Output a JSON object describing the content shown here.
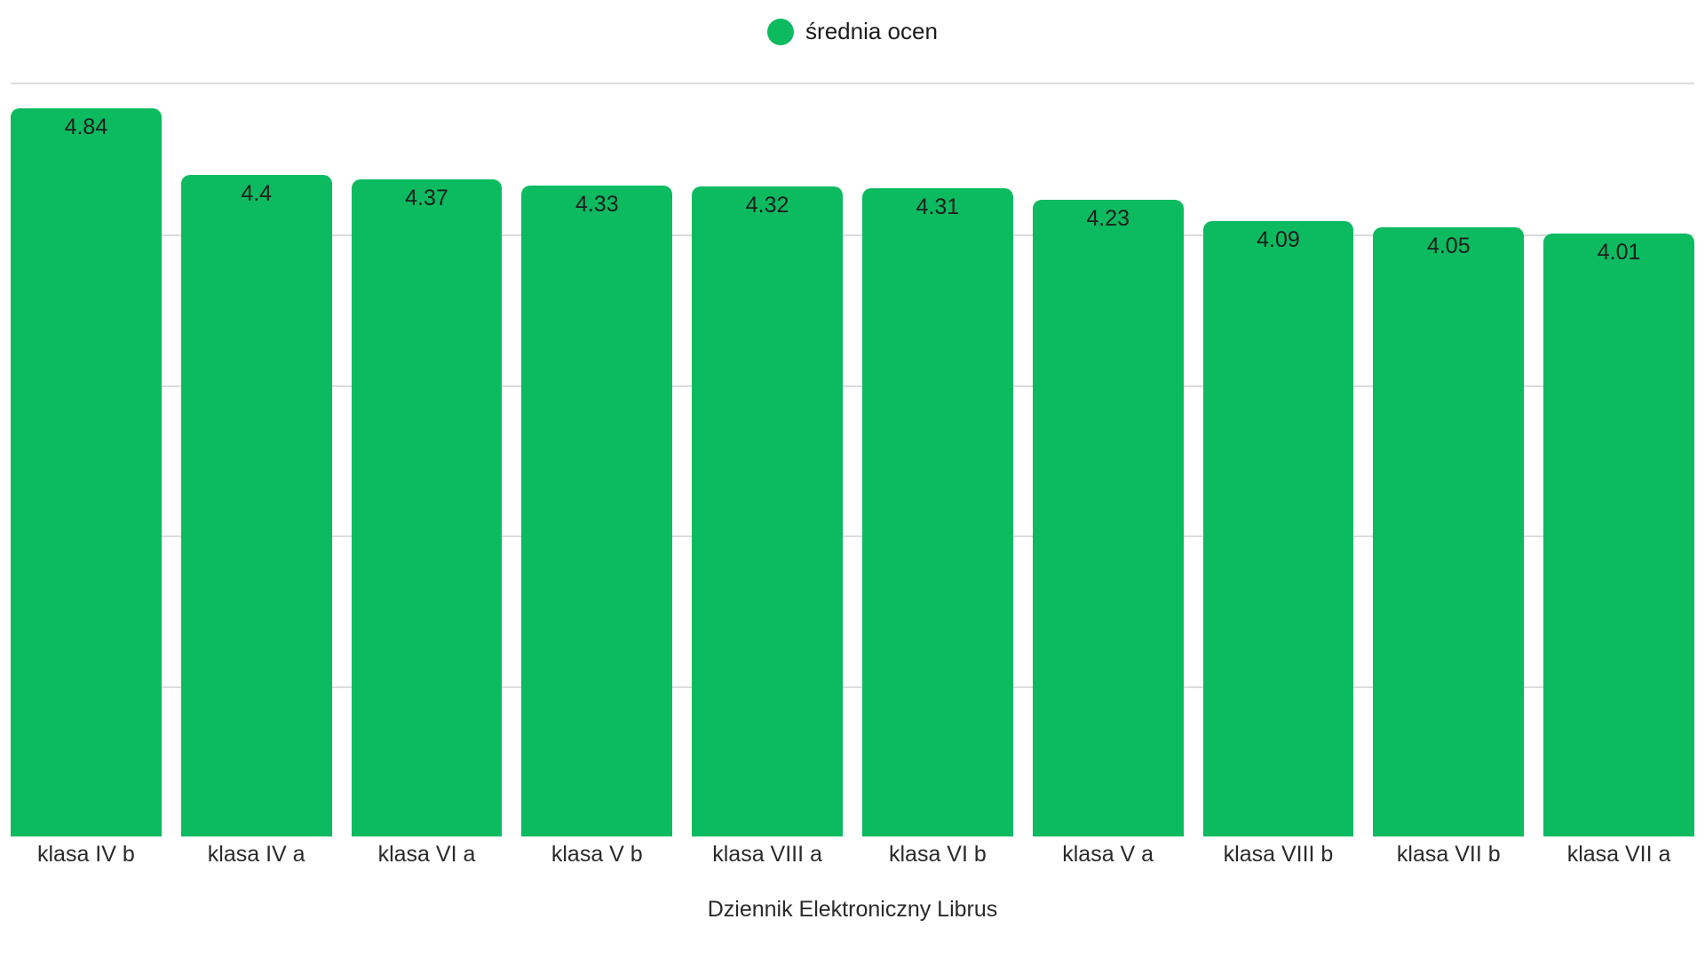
{
  "legend": {
    "label": "średnia ocen",
    "marker_color": "#0cba60"
  },
  "chart_data": {
    "type": "bar",
    "title": "",
    "xlabel": "Dziennik Elektroniczny Librus",
    "ylabel": "",
    "legend": "średnia ocen",
    "legend_position": "top-center",
    "categories": [
      "klasa IV b",
      "klasa IV a",
      "klasa VI a",
      "klasa V b",
      "klasa VIII a",
      "klasa VI b",
      "klasa V a",
      "klasa VIII b",
      "klasa VII b",
      "klasa VII a"
    ],
    "values": [
      4.84,
      4.4,
      4.37,
      4.33,
      4.32,
      4.31,
      4.23,
      4.09,
      4.05,
      4.01
    ],
    "value_labels": [
      "4.84",
      "4.4",
      "4.37",
      "4.33",
      "4.32",
      "4.31",
      "4.23",
      "4.09",
      "4.05",
      "4.01"
    ],
    "ylim": [
      0,
      5
    ],
    "grid": true,
    "gridline_values": [
      1,
      2,
      3,
      4,
      5
    ],
    "bar_color": "#0cba60",
    "grid_color": "#dcdcdc",
    "value_label_color": "#1e1e1e"
  }
}
